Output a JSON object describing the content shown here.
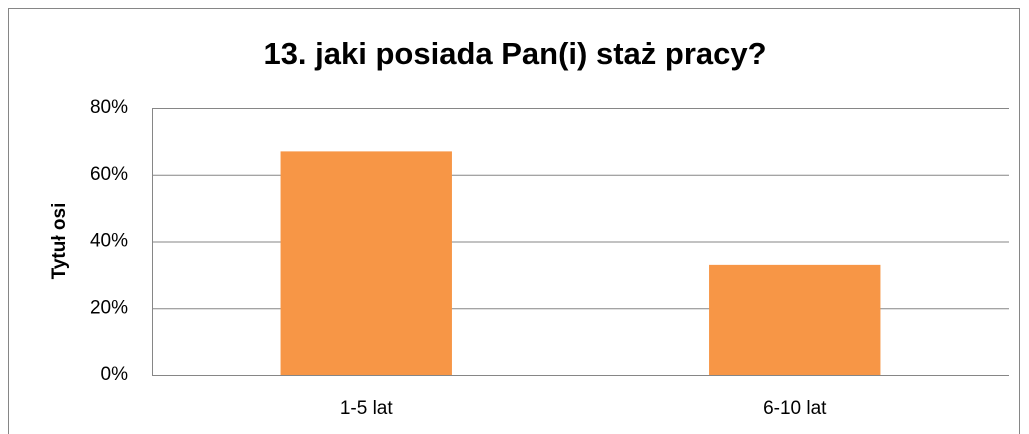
{
  "chart_data": {
    "type": "bar",
    "title": "13. jaki posiada Pan(i) staż pracy?",
    "y_axis_label": "Tytuł osi",
    "categories": [
      "1-5 lat",
      "6-10 lat"
    ],
    "values": [
      67,
      33
    ],
    "color": "#f79646",
    "ylim": [
      0,
      80
    ],
    "yticks": [
      {
        "value": 0,
        "label": "0%"
      },
      {
        "value": 20,
        "label": "20%"
      },
      {
        "value": 40,
        "label": "40%"
      },
      {
        "value": 60,
        "label": "60%"
      },
      {
        "value": 80,
        "label": "80%"
      }
    ],
    "grid": true
  }
}
